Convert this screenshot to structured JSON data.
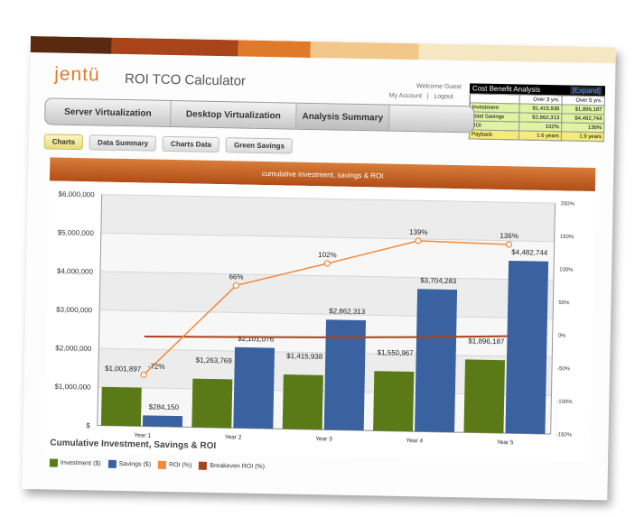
{
  "header": {
    "logo": "jentü",
    "app_title": "ROI TCO Calculator",
    "welcome": "Welcome Guest",
    "my_account": "My Account",
    "separator": "|",
    "logout": "Logout"
  },
  "cost_benefit": {
    "title": "Cost Benefit Analysis",
    "expand": "[Expand]",
    "columns": [
      "Over 3 yrs.",
      "Over 5 yrs."
    ],
    "rows": [
      {
        "label": "Investment",
        "v3": "$1,415,938",
        "v5": "$1,896,187"
      },
      {
        "label": "Total Savings",
        "v3": "$2,862,313",
        "v5": "$4,482,744"
      },
      {
        "label": "ROI",
        "v3": "102%",
        "v5": "136%"
      },
      {
        "label": "Payback",
        "v3": "1.6 years",
        "v5": "1.9 years"
      }
    ]
  },
  "tabs": [
    {
      "label": "Server Virtualization"
    },
    {
      "label": "Desktop Virtualization"
    },
    {
      "label": "Analysis Summary"
    }
  ],
  "subtabs": [
    {
      "label": "Charts"
    },
    {
      "label": "Data Summary"
    },
    {
      "label": "Charts Data"
    },
    {
      "label": "Green Savings"
    }
  ],
  "legend_title": "Cumulative Investment, Savings & ROI",
  "colors": {
    "investment": "#5a7a17",
    "savings": "#3a62a0",
    "roi": "#f08a3c",
    "breakeven": "#a8431a",
    "stripe": [
      "#5a2a10",
      "#a8431a",
      "#e07a2b",
      "#f2c88a",
      "#f6e7c3",
      "#ffffff"
    ]
  },
  "chart_data": {
    "type": "bar",
    "title": "cumulative investment, savings & ROI",
    "categories": [
      "Year 1",
      "Year 2",
      "Year 3",
      "Year 4",
      "Year 5"
    ],
    "series": [
      {
        "name": "Investment ($)",
        "values": [
          1001897,
          1263769,
          1415938,
          1550967,
          1896187
        ],
        "labels": [
          "$1,001,897",
          "$1,263,769",
          "$1,415,938",
          "$1,550,967",
          "$1,896,187"
        ]
      },
      {
        "name": "Savings ($)",
        "values": [
          284150,
          2101076,
          2862313,
          3704283,
          4482744
        ],
        "labels": [
          "$284,150",
          "$2,101,076",
          "$2,862,313",
          "$3,704,283",
          "$4,482,744"
        ]
      },
      {
        "name": "ROI (%)",
        "values": [
          -72,
          66,
          102,
          139,
          136
        ],
        "labels": [
          "-72%",
          "66%",
          "102%",
          "139%",
          "136%"
        ]
      },
      {
        "name": "Breakeven ROI (%)",
        "values": [
          -14,
          -12,
          -10,
          -7,
          -3
        ]
      }
    ],
    "y_left": {
      "ylim": [
        0,
        6000000
      ],
      "ticks": [
        "$",
        "$1,000,000",
        "$2,000,000",
        "$3,000,000",
        "$4,000,000",
        "$5,000,000",
        "$6,000,000"
      ]
    },
    "y_right": {
      "ylim": [
        -150,
        200
      ],
      "ticks": [
        "-150%",
        "-100%",
        "-50%",
        "0%",
        "50%",
        "100%",
        "150%",
        "200%"
      ]
    },
    "grid": true,
    "legend": "bottom"
  }
}
